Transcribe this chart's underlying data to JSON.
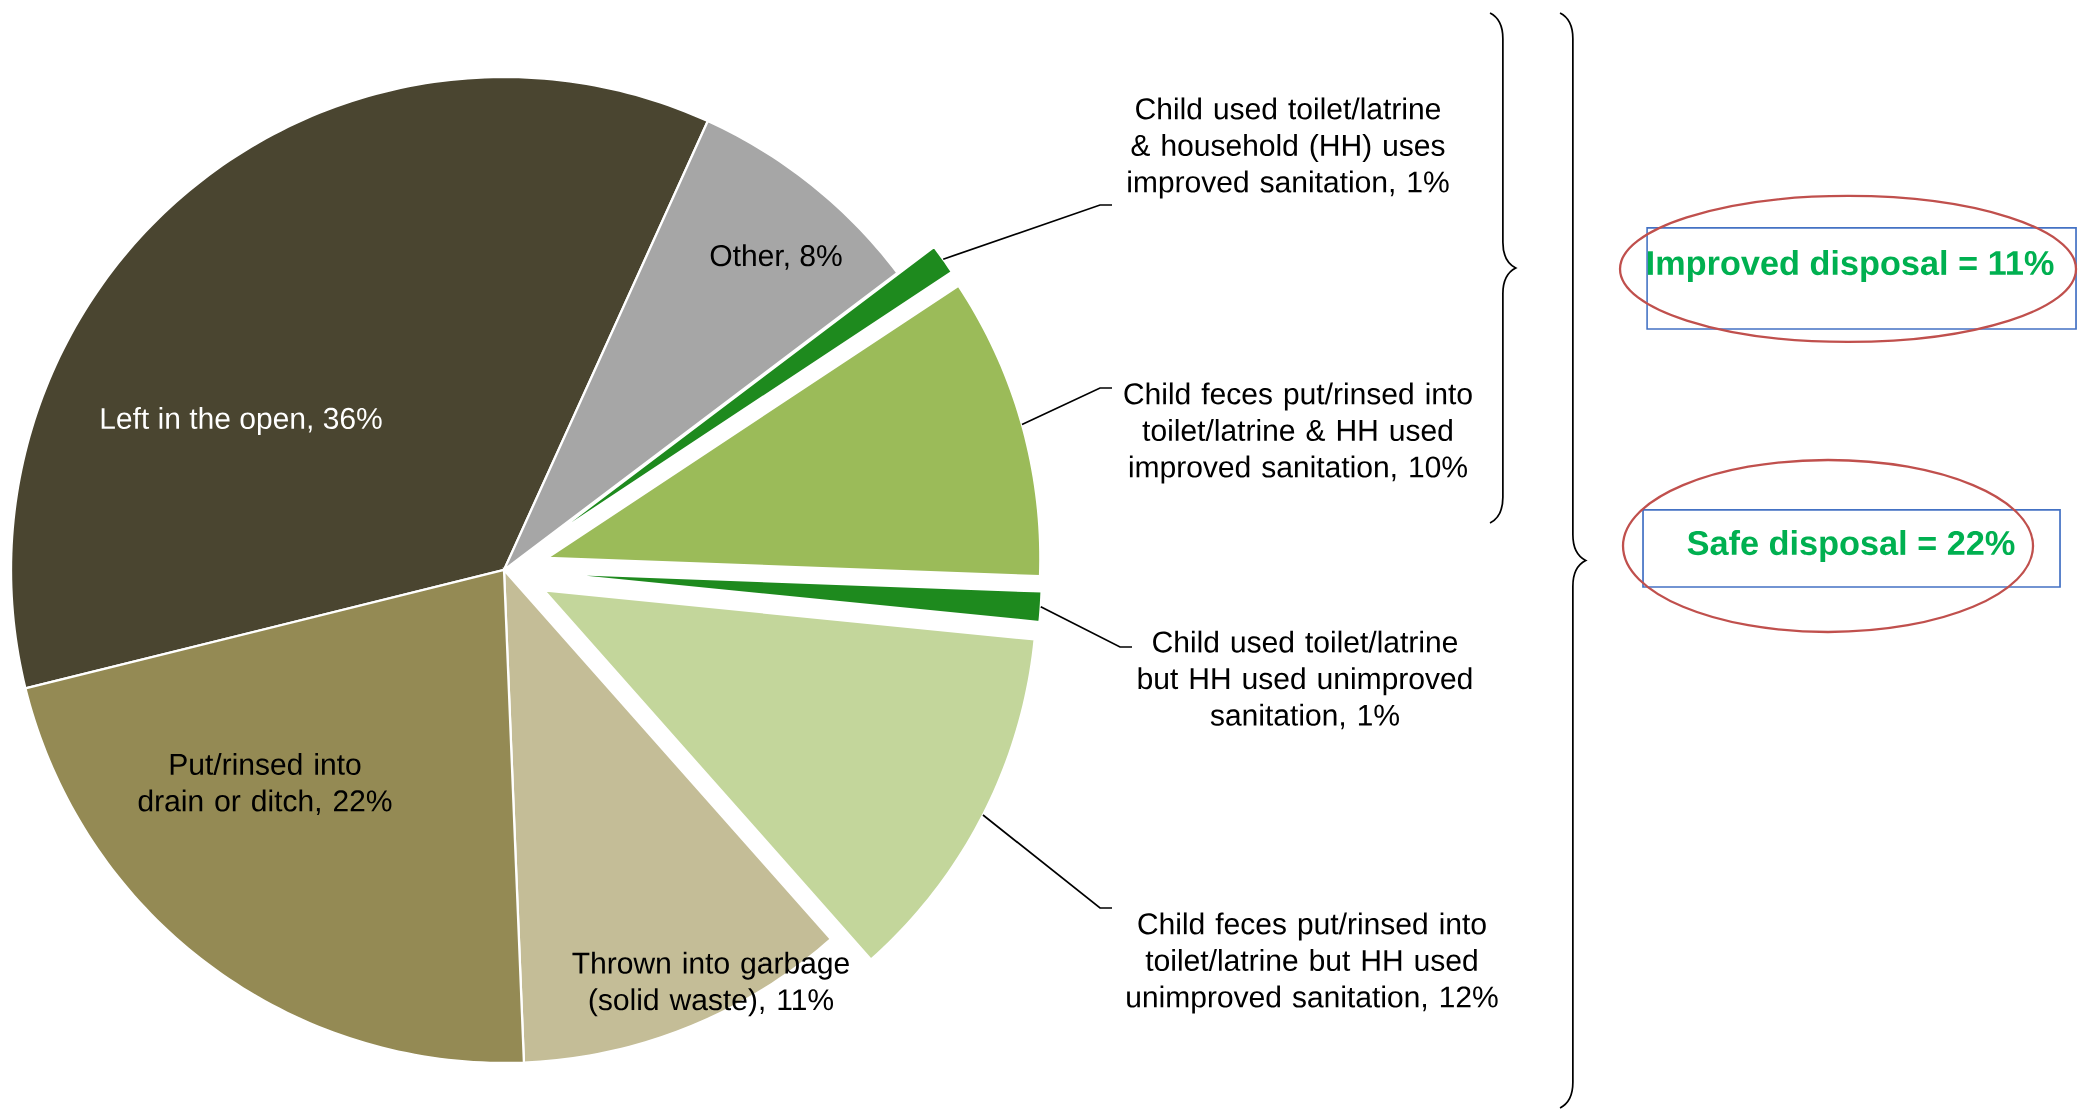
{
  "chart_data": {
    "type": "pie",
    "categories": [
      "Left in the open, 36%",
      "Other, 8%",
      "Child used toilet/latrine & household (HH) uses improved sanitation, 1%",
      "Child feces put/rinsed into toilet/latrine & HH used improved sanitation, 10%",
      "Child used toilet/latrine but HH used unimproved sanitation, 1%",
      "Child feces put/rinsed into toilet/latrine but HH used unimproved sanitation, 12%",
      "Thrown into garbage (solid waste), 11%",
      "Put/rinsed into drain or ditch, 22%"
    ],
    "values": [
      36,
      8,
      1,
      10,
      1,
      12,
      11,
      22
    ],
    "colors": [
      "#4a4530",
      "#a6a6a6",
      "#1e8a1e",
      "#9bbb59",
      "#1e8a1e",
      "#c3d69b",
      "#c4bd97",
      "#948a54"
    ],
    "annotations": [
      "Improved disposal = 11%",
      "Safe disposal = 22%"
    ]
  }
}
